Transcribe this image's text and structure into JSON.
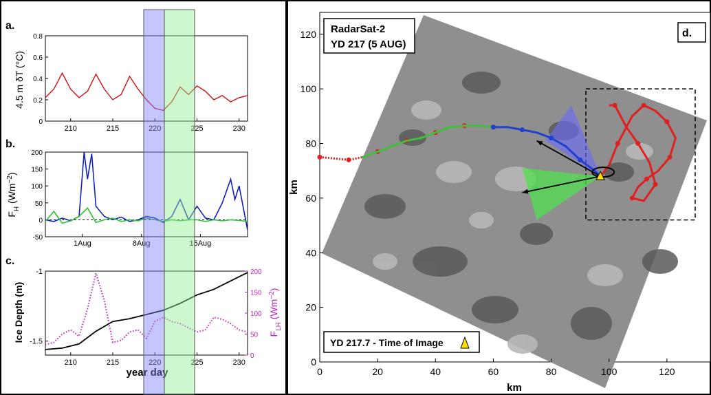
{
  "chart_data": [
    {
      "panel": "a.",
      "type": "line",
      "ylabel": "4.5 m δT (°C)",
      "xlim": [
        207,
        231
      ],
      "ylim": [
        0,
        0.8
      ],
      "xticks": [
        210,
        215,
        220,
        225,
        230
      ],
      "yticks": [
        0,
        0.2,
        0.4,
        0.6,
        0.8
      ],
      "series": [
        {
          "color": "#d01010",
          "x": [
            207,
            208,
            209,
            210,
            211,
            212,
            213,
            214,
            215,
            216,
            217,
            218,
            219,
            220,
            221,
            222,
            223,
            224,
            225,
            226,
            227,
            228,
            229,
            230,
            231
          ],
          "y": [
            0.22,
            0.3,
            0.45,
            0.3,
            0.22,
            0.28,
            0.44,
            0.3,
            0.2,
            0.25,
            0.42,
            0.3,
            0.2,
            0.12,
            0.1,
            0.18,
            0.32,
            0.25,
            0.33,
            0.28,
            0.2,
            0.24,
            0.18,
            0.22,
            0.24
          ]
        }
      ]
    },
    {
      "panel": "b.",
      "type": "line",
      "ylabel": "F_H (Wm^-2)",
      "xlim": [
        0,
        24
      ],
      "ylim": [
        -50,
        200
      ],
      "yticks": [
        -50,
        0,
        50,
        100,
        150,
        200
      ],
      "xtick_labels": [
        {
          "x": 4.4,
          "label": "1Aug"
        },
        {
          "x": 11.4,
          "label": "8Aug"
        },
        {
          "x": 18.4,
          "label": "15Aug"
        }
      ],
      "series": [
        {
          "color": "#1020c0",
          "x": [
            0,
            1,
            2,
            3,
            4,
            4.6,
            5,
            5.5,
            6,
            7,
            8,
            9,
            10,
            11,
            12,
            13,
            14,
            15,
            16,
            17,
            18,
            19,
            20,
            21,
            22,
            22.5,
            23,
            24
          ],
          "y": [
            0,
            -5,
            5,
            -3,
            10,
            200,
            120,
            195,
            40,
            10,
            0,
            8,
            -5,
            0,
            10,
            5,
            -8,
            10,
            60,
            0,
            40,
            5,
            0,
            50,
            120,
            60,
            100,
            -30
          ]
        },
        {
          "color": "#30c030",
          "x": [
            0,
            1,
            2,
            3,
            4,
            5,
            6,
            7,
            8,
            9,
            10,
            11,
            12,
            13,
            14,
            15,
            16,
            17,
            18,
            19,
            20,
            21,
            22,
            23,
            24
          ],
          "y": [
            -5,
            25,
            -10,
            -3,
            10,
            35,
            -8,
            0,
            5,
            -5,
            0,
            -3,
            5,
            0,
            -5,
            0,
            -3,
            0,
            0,
            -5,
            0,
            -3,
            0,
            -2,
            -5
          ]
        }
      ]
    },
    {
      "panel": "c.",
      "type": "line",
      "ylabel": "Ice Depth (m)",
      "y2label": "F_LH (Wm^-2)",
      "xlabel": "year day",
      "xlim": [
        207,
        231
      ],
      "ylim": [
        -1.6,
        -1.0
      ],
      "yticks": [
        -1.5,
        -1
      ],
      "y2lim": [
        0,
        200
      ],
      "y2ticks": [
        0,
        50,
        100,
        150,
        200
      ],
      "xticks": [
        210,
        215,
        220,
        225,
        230
      ],
      "series": [
        {
          "color": "#000000",
          "axis": "left",
          "x": [
            207,
            209,
            211,
            213,
            215,
            217,
            219,
            221,
            223,
            225,
            227,
            229,
            231
          ],
          "y": [
            -1.56,
            -1.55,
            -1.52,
            -1.43,
            -1.36,
            -1.34,
            -1.31,
            -1.28,
            -1.23,
            -1.17,
            -1.13,
            -1.07,
            -1.01
          ]
        },
        {
          "color": "#c020c0",
          "axis": "right",
          "x": [
            207,
            208,
            209,
            210,
            211,
            212,
            213,
            214,
            215,
            216,
            217,
            218,
            219,
            220,
            221,
            222,
            223,
            224,
            225,
            226,
            227,
            228,
            229,
            230,
            231
          ],
          "y": [
            25,
            30,
            50,
            60,
            45,
            110,
            195,
            130,
            30,
            35,
            55,
            60,
            40,
            80,
            90,
            80,
            75,
            65,
            55,
            60,
            90,
            85,
            75,
            60,
            55
          ]
        }
      ]
    },
    {
      "panel": "d.",
      "type": "scatter",
      "title_line1": "RadarSat-2",
      "title_line2": "YD 217 (5 AUG)",
      "caption": "YD 217.7 - Time of Image",
      "xlabel": "km",
      "ylabel": "km",
      "xlim": [
        0,
        135
      ],
      "ylim": [
        0,
        128
      ],
      "xticks": [
        0,
        20,
        40,
        60,
        80,
        100,
        120
      ],
      "yticks": [
        0,
        20,
        40,
        60,
        80,
        100,
        120
      ],
      "tracks": [
        {
          "color": "#e02020",
          "x": [
            0,
            5,
            10,
            15,
            20,
            25,
            30,
            35,
            40,
            45,
            50,
            55,
            60
          ],
          "y": [
            75,
            74.5,
            74,
            75,
            77,
            79,
            81,
            82,
            84,
            86,
            86.5,
            86.5,
            86
          ]
        },
        {
          "color": "#40c040",
          "x": [
            15,
            20,
            25,
            30,
            35,
            40,
            45,
            50,
            55,
            60
          ],
          "y": [
            75,
            77,
            79,
            81,
            82,
            84,
            86,
            86.5,
            86.5,
            86
          ]
        },
        {
          "color": "#2040d0",
          "x": [
            60,
            65,
            70,
            75,
            80,
            85,
            90,
            95,
            97
          ],
          "y": [
            86,
            86,
            85,
            84,
            82,
            79,
            74,
            70,
            68
          ]
        },
        {
          "color": "#e02020",
          "x": [
            97,
            100,
            103,
            108,
            112,
            116,
            120,
            123,
            121,
            117,
            113,
            110,
            108,
            112,
            116,
            114,
            110,
            106,
            102,
            100
          ],
          "y": [
            68,
            72,
            80,
            90,
            94,
            92,
            88,
            82,
            75,
            70,
            67,
            64,
            60,
            59,
            65,
            73,
            80,
            86,
            94,
            94
          ]
        }
      ],
      "marker_position": {
        "x": 97,
        "y": 68
      }
    }
  ]
}
